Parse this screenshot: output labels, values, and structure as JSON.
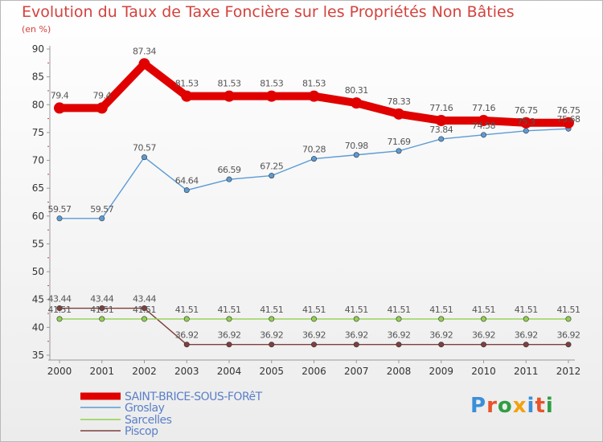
{
  "title": "Evolution du Taux de Taxe Foncière sur les Propriétés Non Bâties",
  "subtitle": "(en %)",
  "logo_text": "Proxiti",
  "chart_data": {
    "type": "line",
    "title": "Evolution du Taux de Taxe Foncière sur les Propriétés Non Bâties",
    "ylabel": "(en %)",
    "xlabel": "",
    "ylim": [
      35,
      90
    ],
    "yticks": [
      35,
      40,
      45,
      50,
      55,
      60,
      65,
      70,
      75,
      80,
      85,
      90
    ],
    "grid": false,
    "legend_position": "bottom-left",
    "x": [
      "2000",
      "2001",
      "2002",
      "2003",
      "2004",
      "2005",
      "2006",
      "2007",
      "2008",
      "2009",
      "2010",
      "2011",
      "2012"
    ],
    "series": [
      {
        "name": "SAINT-BRICE-SOUS-FORêT",
        "color": "#e00000",
        "values": [
          79.4,
          79.4,
          87.34,
          81.53,
          81.53,
          81.53,
          81.53,
          80.31,
          78.33,
          77.16,
          77.16,
          76.75,
          76.75
        ],
        "labels": [
          "79.4",
          "79.4",
          "87.34",
          "81.53",
          "81.53",
          "81.53",
          "81.53",
          "80.31",
          "78.33",
          "77.16",
          "77.16",
          "76.75",
          "76.75"
        ]
      },
      {
        "name": "Groslay",
        "color": "#5b9bd5",
        "values": [
          59.57,
          59.57,
          70.57,
          64.64,
          66.59,
          67.25,
          70.28,
          70.98,
          71.69,
          73.84,
          74.58,
          75.3,
          75.68
        ],
        "labels": [
          "59.57",
          "59.57",
          "70.57",
          "64.64",
          "66.59",
          "67.25",
          "70.28",
          "70.98",
          "71.69",
          "73.84",
          "74.58",
          "75.3",
          "75.68"
        ]
      },
      {
        "name": "Sarcelles",
        "color": "#92d050",
        "values": [
          41.51,
          41.51,
          41.51,
          41.51,
          41.51,
          41.51,
          41.51,
          41.51,
          41.51,
          41.51,
          41.51,
          41.51,
          41.51
        ],
        "labels": [
          "41.51",
          "41.51",
          "41.51",
          "41.51",
          "41.51",
          "41.51",
          "41.51",
          "41.51",
          "41.51",
          "41.51",
          "41.51",
          "41.51",
          "41.51"
        ]
      },
      {
        "name": "Piscop",
        "color": "#7f3f3f",
        "values": [
          43.44,
          43.44,
          43.44,
          36.92,
          36.92,
          36.92,
          36.92,
          36.92,
          36.92,
          36.92,
          36.92,
          36.92,
          36.92
        ],
        "labels": [
          "43.44",
          "43.44",
          "43.44",
          "36.92",
          "36.92",
          "36.92",
          "36.92",
          "36.92",
          "36.92",
          "36.92",
          "36.92",
          "36.92",
          "36.92"
        ]
      }
    ]
  }
}
